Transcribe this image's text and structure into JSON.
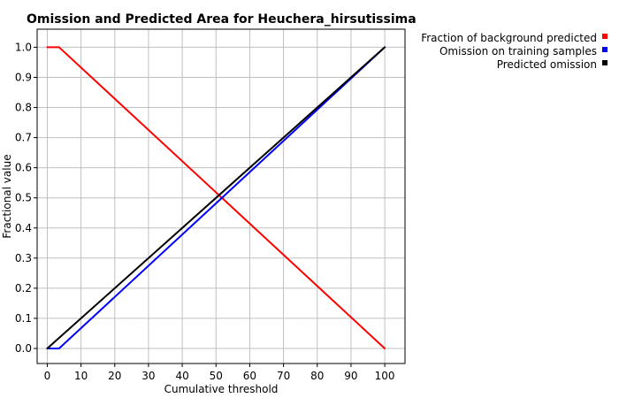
{
  "chart_data": {
    "type": "line",
    "title": "Omission and Predicted Area for Heuchera_hirsutissima",
    "xlabel": "Cumulative threshold",
    "ylabel": "Fractional value",
    "xlim": [
      -3,
      106
    ],
    "ylim": [
      -0.05,
      1.06
    ],
    "x_ticks": [
      0,
      10,
      20,
      30,
      40,
      50,
      60,
      70,
      80,
      90,
      100
    ],
    "y_ticks": [
      0.0,
      0.1,
      0.2,
      0.3,
      0.4,
      0.5,
      0.6,
      0.7,
      0.8,
      0.9,
      1.0
    ],
    "x_tick_labels": [
      "0",
      "10",
      "20",
      "30",
      "40",
      "50",
      "60",
      "70",
      "80",
      "90",
      "100"
    ],
    "y_tick_labels": [
      "0.0",
      "0.1",
      "0.2",
      "0.3",
      "0.4",
      "0.5",
      "0.6",
      "0.7",
      "0.8",
      "0.9",
      "1.0"
    ],
    "grid": true,
    "legend_position": "top-right outside plot",
    "series": [
      {
        "name": "Fraction of background predicted",
        "color": "#ff0000",
        "x": [
          0,
          3.5,
          100
        ],
        "y": [
          1.0,
          1.0,
          0.0
        ]
      },
      {
        "name": "Omission on training samples",
        "color": "#0000ff",
        "x": [
          0,
          3.5,
          100
        ],
        "y": [
          0.0,
          0.0,
          1.0
        ]
      },
      {
        "name": "Predicted omission",
        "color": "#000000",
        "x": [
          0,
          100
        ],
        "y": [
          0.0,
          1.0
        ]
      }
    ]
  }
}
